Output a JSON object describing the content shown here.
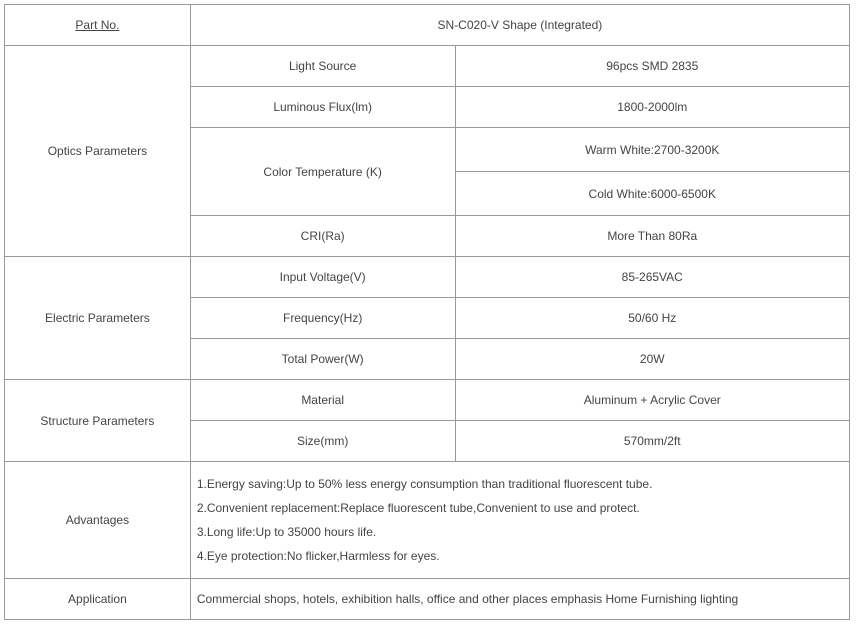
{
  "header": {
    "partno_label": "Part No.",
    "partno_value": "SN-C020-V Shape (Integrated)"
  },
  "optics": {
    "section": "Optics  Parameters",
    "light_source_label": "Light Source",
    "light_source_value": "96pcs SMD 2835",
    "luminous_flux_label": "Luminous  Flux(lm)",
    "luminous_flux_value": "1800-2000lm",
    "color_temp_label": "Color Temperature (K)",
    "color_temp_warm": "Warm White:2700-3200K",
    "color_temp_cold": "Cold White:6000-6500K",
    "cri_label": "CRI(Ra)",
    "cri_value": "More Than 80Ra"
  },
  "electric": {
    "section": "Electric  Parameters",
    "input_voltage_label": "Input Voltage(V)",
    "input_voltage_value": "85-265VAC",
    "frequency_label": "Frequency(Hz)",
    "frequency_value": "50/60  Hz",
    "total_power_label": "Total Power(W)",
    "total_power_value": "20W"
  },
  "structure": {
    "section": "Structure  Parameters",
    "material_label": "Material",
    "material_value": "Aluminum + Acrylic  Cover",
    "size_label": "Size(mm)",
    "size_value": "570mm/2ft"
  },
  "advantages": {
    "section": "Advantages",
    "line1": "1.Energy saving:Up to 50% less energy consumption than  traditional fluorescent tube.",
    "line2": "2.Convenient replacement:Replace fluorescent tube,Convenient  to use and protect.",
    "line3": "3.Long life:Up to 35000 hours life.",
    "line4": "4.Eye protection:No flicker,Harmless for eyes."
  },
  "application": {
    "section": "Application",
    "text": "Commercial shops, hotels, exhibition halls, office  and other places emphasis Home Furnishing lighting"
  },
  "style": {
    "border_color": "#999999",
    "text_color": "#444444",
    "font_size": 12
  }
}
